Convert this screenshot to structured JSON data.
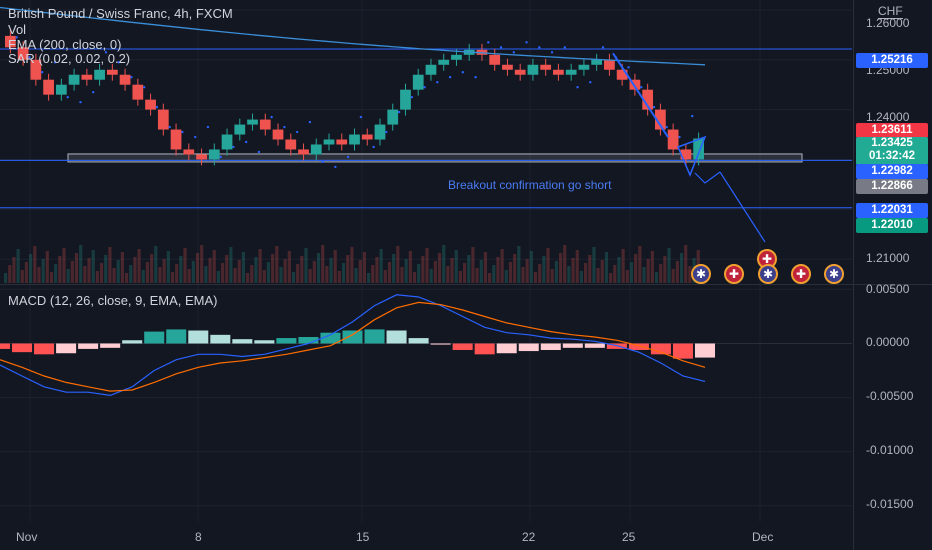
{
  "header": {
    "symbol_title": "British Pound / Swiss Franc, 4h, FXCM",
    "vol_label": "Vol",
    "ema_label": "EMA (200, close, 0)",
    "sar_label": "SAR (0.02, 0.02, 0.2)",
    "macd_label": "MACD (12, 26, close, 9, EMA, EMA)",
    "currency": "CHF"
  },
  "annotation": "Breakout confirmation go short",
  "price_axis_ticks": [
    "1.26000",
    "1.25000",
    "1.24000",
    "1.21000",
    "0.00500",
    "0.00000",
    "-0.00500",
    "-0.01000",
    "-0.01500"
  ],
  "date_ticks": [
    "Nov",
    "8",
    "15",
    "22",
    "25",
    "Dec"
  ],
  "badges": [
    {
      "text": "1.25216",
      "color": "#2962ff"
    },
    {
      "text": "1.23611",
      "color": "#f23645"
    },
    {
      "text": "1.23425",
      "text2": "01:32:42",
      "color": "#22ab94"
    },
    {
      "text": "1.22982",
      "color": "#2962ff"
    },
    {
      "text": "1.22866",
      "color": "#787b86"
    },
    {
      "text": "1.22031",
      "color": "#2962ff"
    },
    {
      "text": "1.22010",
      "color": "#089981"
    }
  ],
  "events": [
    {
      "icon": "swiss-flag-icon",
      "glyph": "✚"
    },
    {
      "icon": "uk-flag-icon",
      "glyph": "✱"
    },
    {
      "icon": "swiss-flag-icon",
      "glyph": "✚"
    },
    {
      "icon": "uk-flag-icon",
      "glyph": "✱"
    },
    {
      "icon": "swiss-flag-icon",
      "glyph": "✚"
    },
    {
      "icon": "uk-flag-icon",
      "glyph": "✱"
    }
  ],
  "colors": {
    "up": "#26a69a",
    "down": "#ef5350",
    "ema": "#3a8ed8",
    "sar": "#2962ff",
    "macd": "#2962ff",
    "signal": "#ff6d00",
    "hline": "#2962ff",
    "background": "#131722"
  },
  "chart_data": {
    "type": "candlestick",
    "price_range": [
      1.205,
      1.262
    ],
    "horizontal_levels": [
      1.25216,
      1.22982,
      1.22031
    ],
    "support_zone": [
      1.2295,
      1.2311
    ],
    "price_series_approx": [
      1.2548,
      1.2525,
      1.25,
      1.246,
      1.243,
      1.245,
      1.247,
      1.246,
      1.248,
      1.247,
      1.245,
      1.242,
      1.24,
      1.236,
      1.232,
      1.231,
      1.23,
      1.232,
      1.235,
      1.237,
      1.238,
      1.236,
      1.234,
      1.232,
      1.231,
      1.233,
      1.234,
      1.233,
      1.235,
      1.234,
      1.237,
      1.24,
      1.244,
      1.247,
      1.249,
      1.25,
      1.251,
      1.252,
      1.251,
      1.249,
      1.248,
      1.247,
      1.249,
      1.248,
      1.247,
      1.248,
      1.249,
      1.25,
      1.248,
      1.246,
      1.244,
      1.24,
      1.236,
      1.232,
      1.23,
      1.2342
    ],
    "macd_series_approx": [
      -0.002,
      -0.003,
      -0.004,
      -0.0045,
      -0.0045,
      -0.0048,
      -0.004,
      -0.0025,
      -0.0015,
      -0.001,
      -0.001,
      -0.0012,
      -0.001,
      -0.0005,
      0.0,
      0.0008,
      0.002,
      0.0035,
      0.0045,
      0.0043,
      0.0035,
      0.0025,
      0.0015,
      0.001,
      0.0008,
      0.0005,
      0.0004,
      0.0002,
      -0.0002,
      -0.0008,
      -0.0018,
      -0.003,
      -0.0035
    ],
    "signal_series_approx": [
      -0.0015,
      -0.0022,
      -0.003,
      -0.0036,
      -0.004,
      -0.0044,
      -0.0043,
      -0.0036,
      -0.0028,
      -0.0022,
      -0.0018,
      -0.0016,
      -0.0013,
      -0.001,
      -0.0006,
      -0.0002,
      0.0008,
      0.0022,
      0.0033,
      0.0038,
      0.0036,
      0.0031,
      0.0025,
      0.0019,
      0.0015,
      0.0011,
      0.0008,
      0.0006,
      0.0003,
      -0.0002,
      -0.0008,
      -0.0016,
      -0.0022
    ],
    "macd_range": [
      -0.0165,
      0.0055
    ]
  }
}
